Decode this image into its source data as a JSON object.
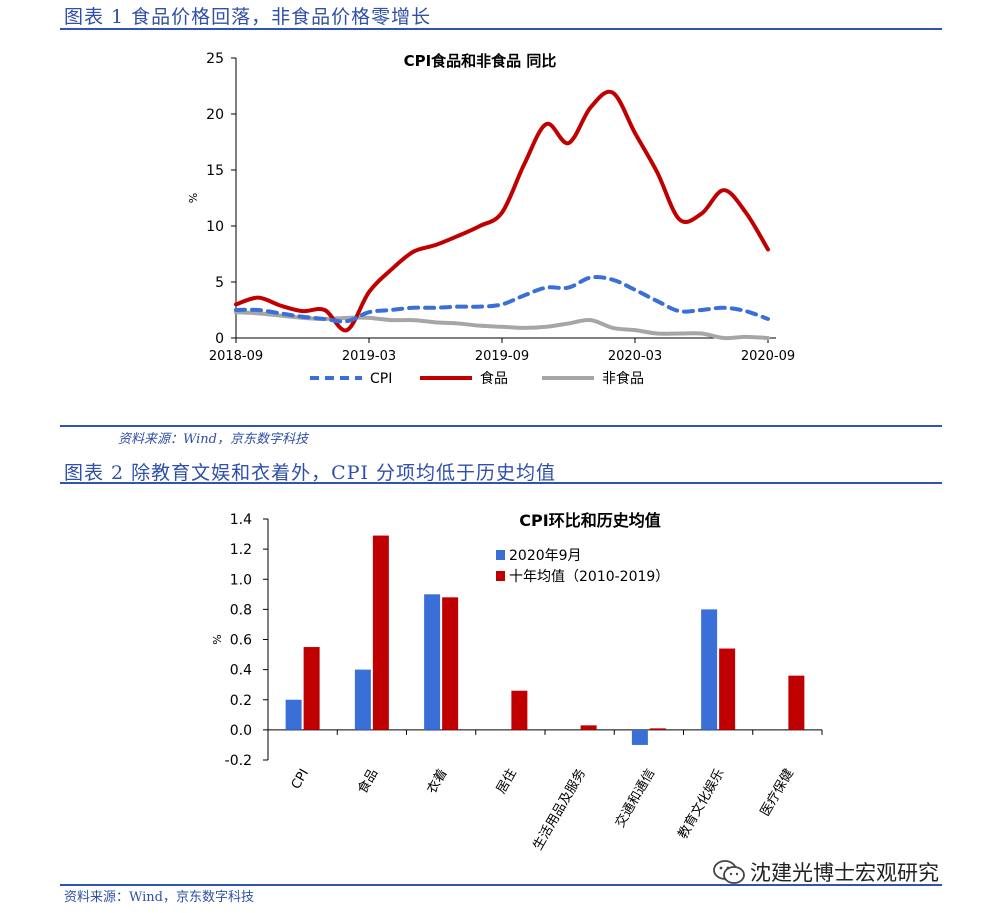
{
  "figure1": {
    "title": "图表 1 食品价格回落，非食品价格零增长",
    "source": "资料来源：Wind，京东数字科技"
  },
  "figure2": {
    "title": "图表 2 除教育文娱和衣着外，CPI 分项均低于历史均值",
    "source": "资料来源：Wind，京东数字科技"
  },
  "watermark": {
    "text": "沈建光博士宏观研究",
    "icon": "wechat-icon"
  },
  "chart_data": [
    {
      "type": "line",
      "title": "CPI食品和非食品 同比",
      "ylabel": "%",
      "xlabel": "",
      "ylim": [
        0,
        25
      ],
      "yticks": [
        0,
        5,
        10,
        15,
        20,
        25
      ],
      "xtick_labels": [
        "2018-09",
        "2019-03",
        "2019-09",
        "2020-03",
        "2020-09"
      ],
      "x": [
        "2018-09",
        "2018-10",
        "2018-11",
        "2018-12",
        "2019-01",
        "2019-02",
        "2019-03",
        "2019-04",
        "2019-05",
        "2019-06",
        "2019-07",
        "2019-08",
        "2019-09",
        "2019-10",
        "2019-11",
        "2019-12",
        "2020-01",
        "2020-02",
        "2020-03",
        "2020-04",
        "2020-05",
        "2020-06",
        "2020-07",
        "2020-08",
        "2020-09"
      ],
      "legend_position": "bottom",
      "grid": false,
      "series": [
        {
          "name": "CPI",
          "color": "#3a6fd8",
          "style": "dashed",
          "values": [
            2.5,
            2.5,
            2.2,
            1.9,
            1.7,
            1.5,
            2.3,
            2.5,
            2.7,
            2.7,
            2.8,
            2.8,
            3.0,
            3.8,
            4.5,
            4.5,
            5.4,
            5.2,
            4.3,
            3.3,
            2.4,
            2.5,
            2.7,
            2.4,
            1.7
          ]
        },
        {
          "name": "食品",
          "color": "#c00000",
          "style": "solid",
          "values": [
            3.0,
            3.6,
            2.9,
            2.4,
            2.5,
            0.7,
            4.1,
            6.1,
            7.7,
            8.3,
            9.1,
            10.0,
            11.2,
            15.5,
            19.1,
            17.4,
            20.6,
            21.9,
            18.3,
            14.8,
            10.6,
            11.1,
            13.2,
            11.2,
            7.9
          ]
        },
        {
          "name": "非食品",
          "color": "#a6a6a6",
          "style": "solid",
          "values": [
            2.3,
            2.2,
            2.0,
            1.8,
            1.7,
            1.8,
            1.8,
            1.6,
            1.6,
            1.4,
            1.3,
            1.1,
            1.0,
            0.9,
            1.0,
            1.3,
            1.6,
            0.9,
            0.7,
            0.4,
            0.4,
            0.4,
            0.0,
            0.1,
            0.0
          ]
        }
      ]
    },
    {
      "type": "bar",
      "title": "CPI环比和历史均值",
      "ylabel": "%",
      "xlabel": "",
      "ylim": [
        -0.2,
        1.4
      ],
      "yticks": [
        -0.2,
        0.0,
        0.2,
        0.4,
        0.6,
        0.8,
        1.0,
        1.2,
        1.4
      ],
      "ytick_labels": [
        "-0.2",
        "0.0",
        "0.2",
        "0.4",
        "0.6",
        "0.8",
        "1.0",
        "1.2",
        "1.4"
      ],
      "categories": [
        "CPI",
        "食品",
        "衣着",
        "居住",
        "生活用品及服务",
        "交通和通信",
        "教育文化娱乐",
        "医疗保健"
      ],
      "legend_position": "top-center",
      "grid": false,
      "series": [
        {
          "name": "2020年9月",
          "color": "#3a6fd8",
          "values": [
            0.2,
            0.4,
            0.9,
            0.0,
            0.0,
            -0.1,
            0.8,
            0.0
          ]
        },
        {
          "name": "十年均值（2010-2019）",
          "color": "#c00000",
          "values": [
            0.55,
            1.29,
            0.88,
            0.26,
            0.03,
            0.01,
            0.54,
            0.36
          ]
        }
      ]
    }
  ]
}
